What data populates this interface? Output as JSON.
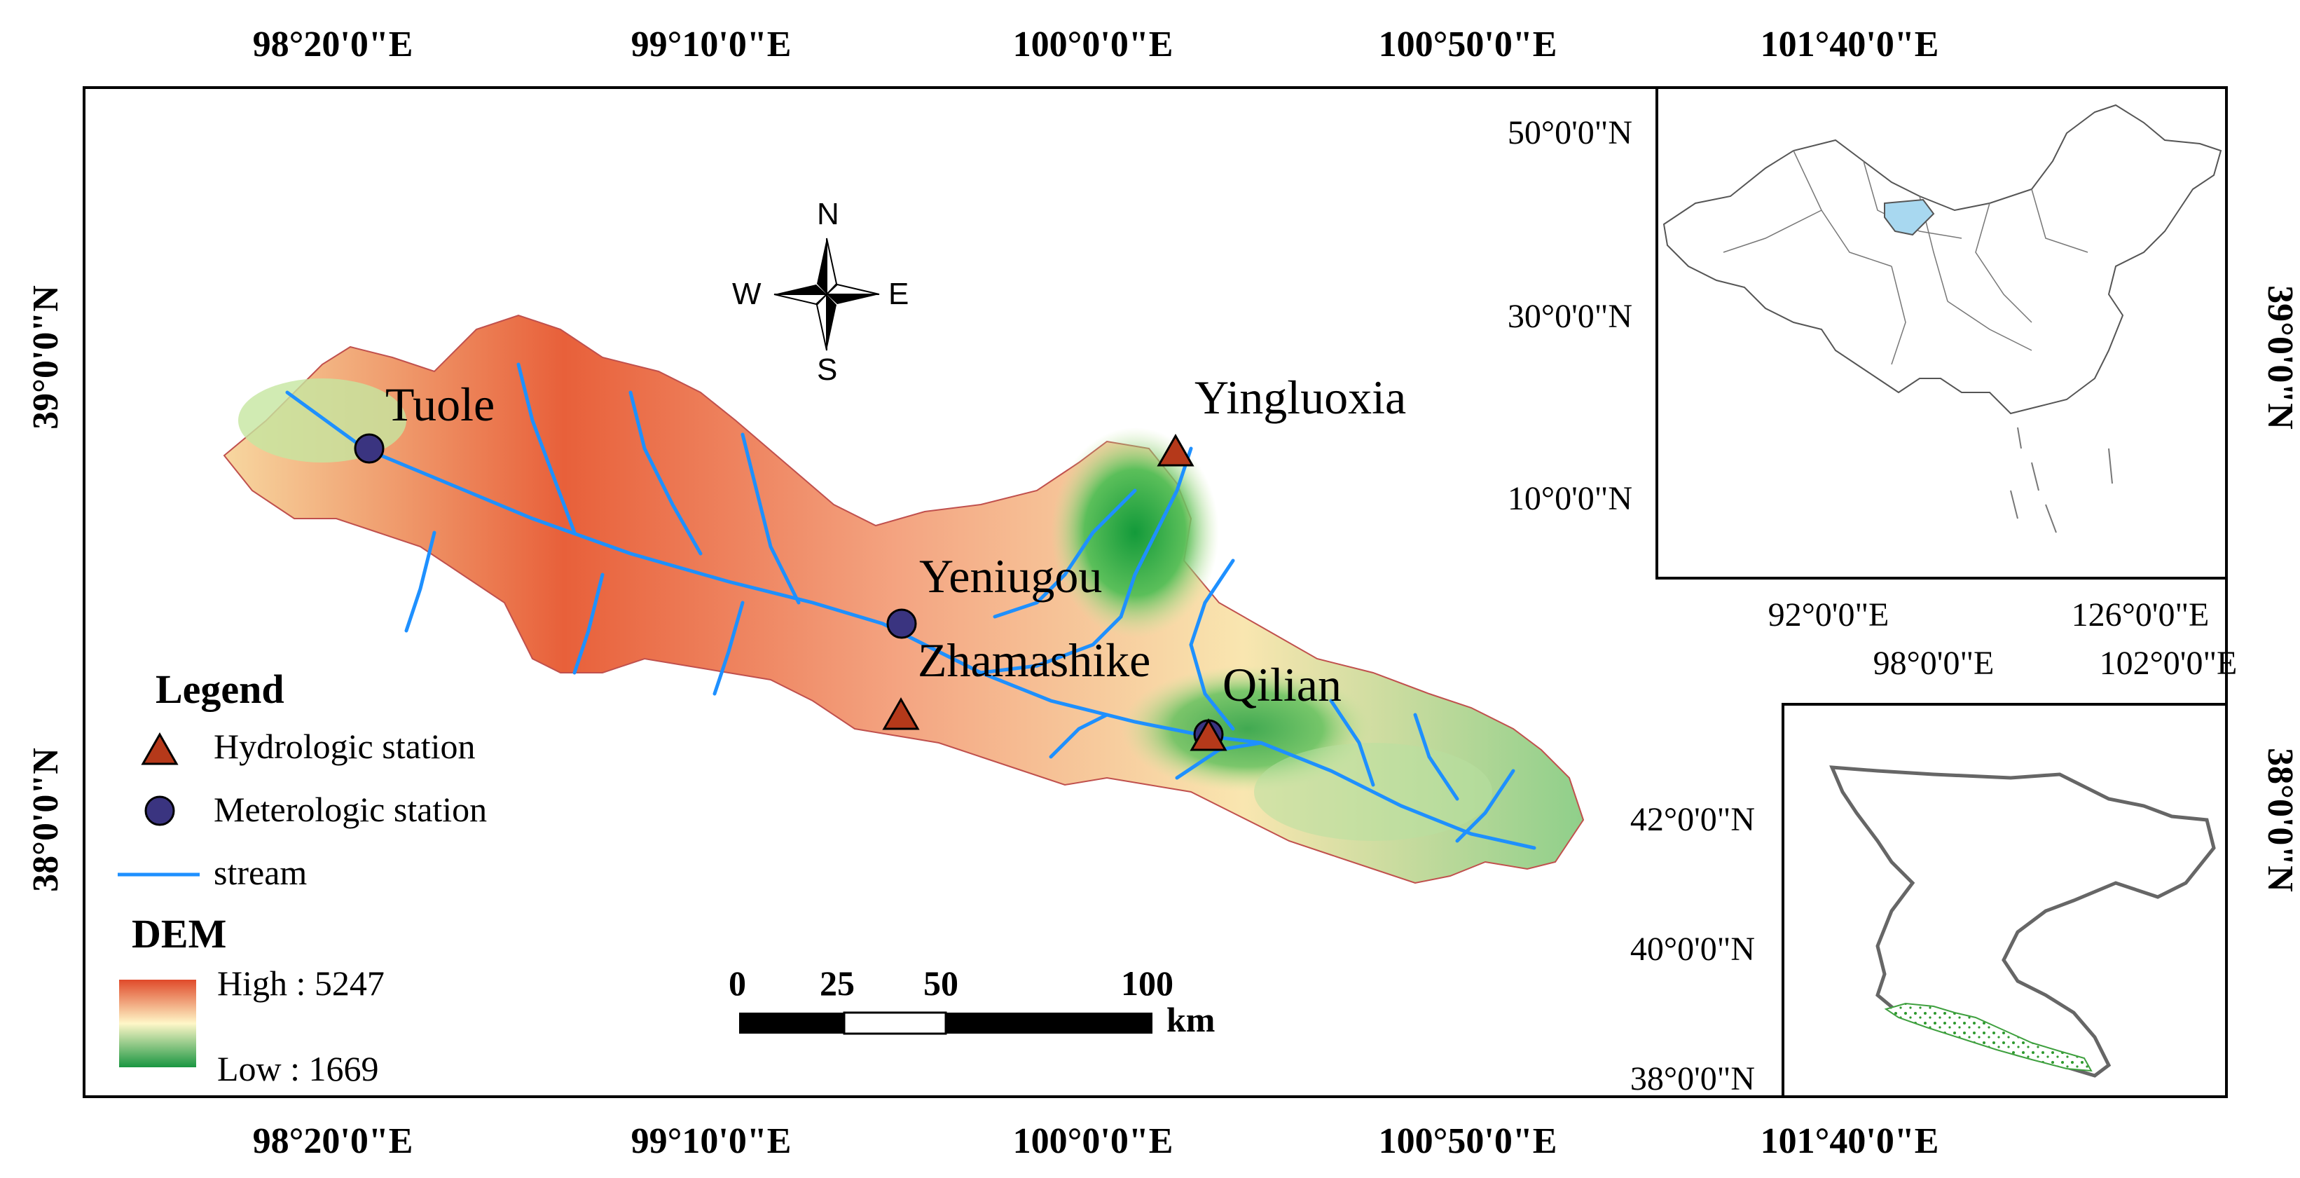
{
  "top_ticks": [
    "98°20'0\"E",
    "99°10'0\"E",
    "100°0'0\"E",
    "100°50'0\"E",
    "101°40'0\"E"
  ],
  "bottom_ticks": [
    "98°20'0\"E",
    "99°10'0\"E",
    "100°0'0\"E",
    "100°50'0\"E",
    "101°40'0\"E"
  ],
  "left_ticks": [
    "39°0'0\"N",
    "38°0'0\"N"
  ],
  "right_ticks": [
    "39°0'0\"N",
    "38°0'0\"N"
  ],
  "stations": [
    {
      "name": "Tuole",
      "kind": "meteorologic"
    },
    {
      "name": "Yingluoxia",
      "kind": "hydrologic"
    },
    {
      "name": "Yeniugou",
      "kind": "meteorologic"
    },
    {
      "name": "Zhamashike",
      "kind": "hydrologic"
    },
    {
      "name": "Qilian",
      "kind": "both"
    }
  ],
  "compass": {
    "n": "N",
    "s": "S",
    "e": "E",
    "w": "W"
  },
  "legend": {
    "title": "Legend",
    "hydro": "Hydrologic station",
    "meteo": "Meterologic station",
    "stream": "stream",
    "dem_title": "DEM",
    "high": "High : 5247",
    "low": "Low : 1669"
  },
  "scale": {
    "labels": [
      "0",
      "25",
      "50",
      "100"
    ],
    "unit": "km"
  },
  "china_inset": {
    "lat_ticks": [
      "50°0'0\"N",
      "30°0'0\"N",
      "10°0'0\"N"
    ],
    "lon_ticks_row1": [
      "92°0'0\"E",
      "126°0'0\"E"
    ],
    "lon_ticks_row2": [
      "98°0'0\"E",
      "102°0'0\"E"
    ]
  },
  "hrb_inset": {
    "lat_ticks": [
      "42°0'0\"N",
      "40°0'0\"N",
      "38°0'0\"N"
    ]
  },
  "colors": {
    "dem_high": "#d7301f",
    "dem_mid": "#fdf5c0",
    "dem_low": "#1a9641",
    "stream": "#1e90ff",
    "hydro_station": "#b5391a",
    "meteo_station": "#3a3480",
    "highlight_region": "#a8d8f0"
  }
}
